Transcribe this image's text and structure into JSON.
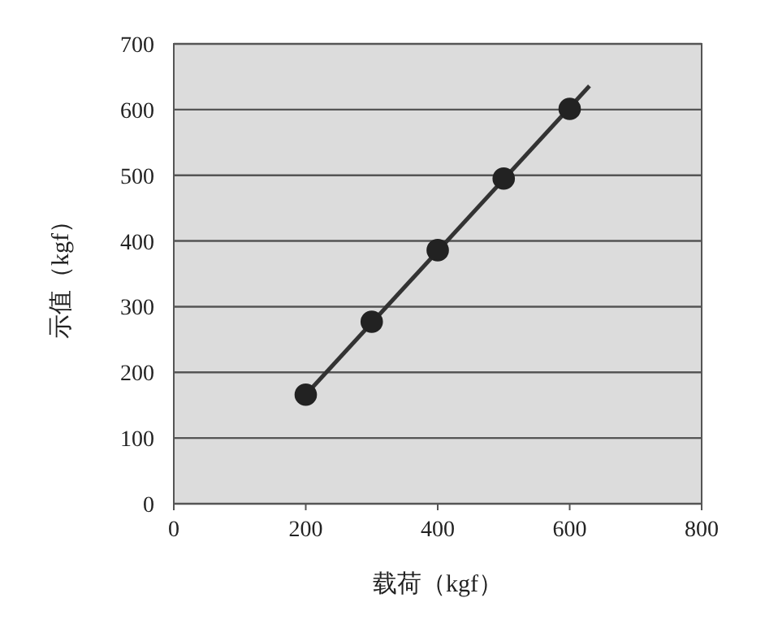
{
  "chart_data": {
    "type": "scatter",
    "xlabel": "载荷（kgf）",
    "ylabel": "示值（kgf）",
    "xlim": [
      0,
      800
    ],
    "xticks": [
      0,
      200,
      400,
      600,
      800
    ],
    "ylim": [
      0,
      700
    ],
    "yticks": [
      0,
      100,
      200,
      300,
      400,
      500,
      600,
      700
    ],
    "grid": "y",
    "marker": "circle",
    "series": [
      {
        "type": "line",
        "color": "#333333",
        "x": [
          200,
          630
        ],
        "values": [
          166,
          636
        ],
        "marker": "none"
      },
      {
        "color": "#222222",
        "x": [
          200,
          300,
          400,
          500,
          600
        ],
        "values": [
          166,
          277,
          386,
          495,
          601
        ]
      }
    ]
  }
}
